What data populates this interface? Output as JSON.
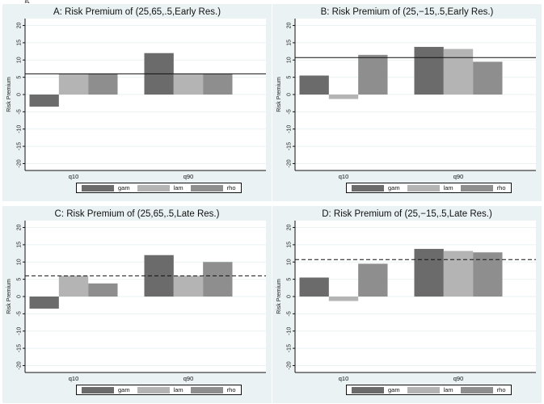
{
  "chart_data": [
    {
      "type": "bar",
      "title": "A: Risk Premium of (25,65,.5,Early Res.)",
      "ylabel": "Risk Premium",
      "ylim": [
        -22,
        22
      ],
      "yticks": [
        -20,
        -15,
        -10,
        -5,
        0,
        5,
        10,
        15,
        20
      ],
      "categories": [
        "q10",
        "q90"
      ],
      "series": [
        {
          "name": "gam",
          "values": [
            -3.5,
            12
          ],
          "color": "#6b6b6b"
        },
        {
          "name": "lam",
          "values": [
            6,
            6
          ],
          "color": "#b4b4b4"
        },
        {
          "name": "rho",
          "values": [
            6,
            6
          ],
          "color": "#8e8e8e"
        }
      ],
      "reference_line": {
        "value": 6,
        "style": "solid"
      },
      "grid": true,
      "legend": "bottom"
    },
    {
      "type": "bar",
      "title": "B: Risk Premium of (25,−15,.5,Early Res.)",
      "ylabel": "Risk Premium",
      "ylim": [
        -22,
        22
      ],
      "yticks": [
        -20,
        -15,
        -10,
        -5,
        0,
        5,
        10,
        15,
        20
      ],
      "categories": [
        "q10",
        "q90"
      ],
      "series": [
        {
          "name": "gam",
          "values": [
            5.5,
            13.8
          ],
          "color": "#6b6b6b"
        },
        {
          "name": "lam",
          "values": [
            -1.3,
            13.2
          ],
          "color": "#b4b4b4"
        },
        {
          "name": "rho",
          "values": [
            11.5,
            9.5
          ],
          "color": "#8e8e8e"
        }
      ],
      "reference_line": {
        "value": 10.7,
        "style": "solid"
      },
      "grid": true,
      "legend": "bottom"
    },
    {
      "type": "bar",
      "title": "C: Risk Premium of (25,65,.5,Late Res.)",
      "ylabel": "Risk Premium",
      "ylim": [
        -22,
        22
      ],
      "yticks": [
        -20,
        -15,
        -10,
        -5,
        0,
        5,
        10,
        15,
        20
      ],
      "categories": [
        "q10",
        "q90"
      ],
      "series": [
        {
          "name": "gam",
          "values": [
            -3.5,
            12
          ],
          "color": "#6b6b6b"
        },
        {
          "name": "lam",
          "values": [
            6,
            6
          ],
          "color": "#b4b4b4"
        },
        {
          "name": "rho",
          "values": [
            3.8,
            10
          ],
          "color": "#8e8e8e"
        }
      ],
      "reference_line": {
        "value": 6,
        "style": "dashed"
      },
      "grid": true,
      "legend": "bottom"
    },
    {
      "type": "bar",
      "title": "D: Risk Premium of (25,−15,.5,Late Res.)",
      "ylabel": "Risk Premium",
      "ylim": [
        -22,
        22
      ],
      "yticks": [
        -20,
        -15,
        -10,
        -5,
        0,
        5,
        10,
        15,
        20
      ],
      "categories": [
        "q10",
        "q90"
      ],
      "series": [
        {
          "name": "gam",
          "values": [
            5.5,
            13.8
          ],
          "color": "#6b6b6b"
        },
        {
          "name": "lam",
          "values": [
            -1.3,
            13.2
          ],
          "color": "#b4b4b4"
        },
        {
          "name": "rho",
          "values": [
            9.5,
            12.8
          ],
          "color": "#8e8e8e"
        }
      ],
      "reference_line": {
        "value": 10.7,
        "style": "dashed"
      },
      "grid": true,
      "legend": "bottom"
    }
  ],
  "colors": {
    "panel_background": "#eaf2f3",
    "plot_background": "#ffffff",
    "gridline": "#eaf2f3"
  }
}
